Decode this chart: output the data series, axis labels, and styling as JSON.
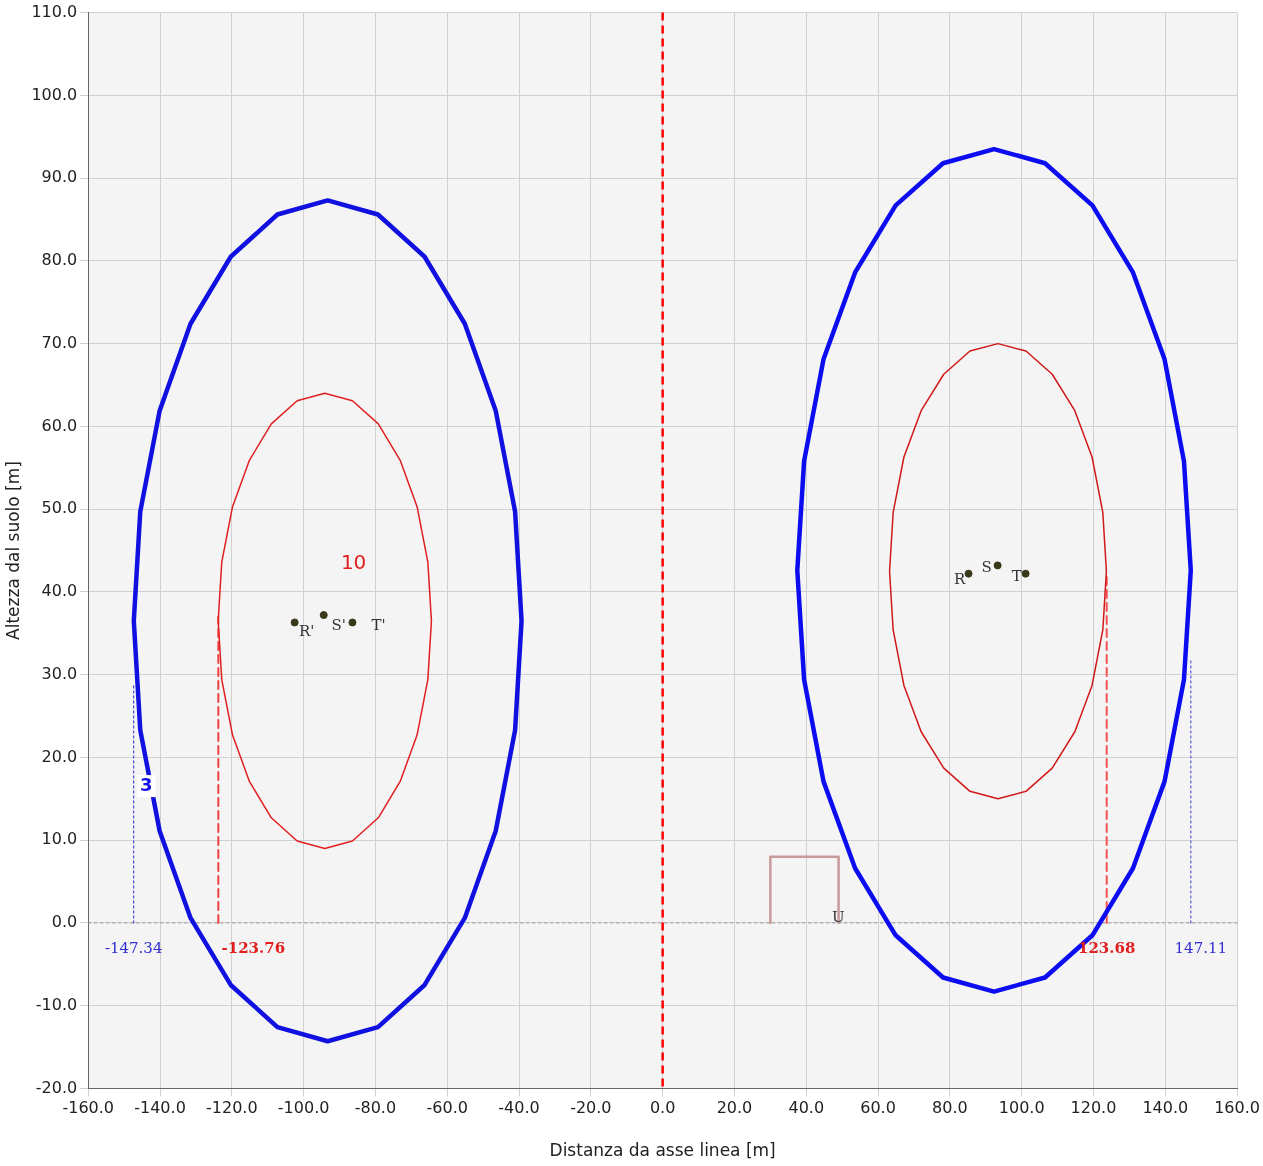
{
  "chart_data": {
    "type": "line",
    "xlabel": "Distanza da asse linea [m]",
    "ylabel": "Altezza dal suolo [m]",
    "xlim": [
      -160,
      160
    ],
    "ylim": [
      -20,
      110
    ],
    "xticks": [
      {
        "value": -160,
        "label": "-160.0"
      },
      {
        "value": -140,
        "label": "-140.0"
      },
      {
        "value": -120,
        "label": "-120.0"
      },
      {
        "value": -100,
        "label": "-100.0"
      },
      {
        "value": -80,
        "label": "-80.0"
      },
      {
        "value": -60,
        "label": "-60.0"
      },
      {
        "value": -40,
        "label": "-40.0"
      },
      {
        "value": -20,
        "label": "-20.0"
      },
      {
        "value": 0,
        "label": "0.0"
      },
      {
        "value": 20,
        "label": "20.0"
      },
      {
        "value": 40,
        "label": "40.0"
      },
      {
        "value": 60,
        "label": "60.0"
      },
      {
        "value": 80,
        "label": "80.0"
      },
      {
        "value": 100,
        "label": "100.0"
      },
      {
        "value": 120,
        "label": "120.0"
      },
      {
        "value": 140,
        "label": "140.0"
      },
      {
        "value": 160,
        "label": "160.0"
      }
    ],
    "yticks": [
      {
        "value": -20,
        "label": "-20.0"
      },
      {
        "value": -10,
        "label": "-10.0"
      },
      {
        "value": 0,
        "label": "0.0"
      },
      {
        "value": 10,
        "label": "10.0"
      },
      {
        "value": 20,
        "label": "20.0"
      },
      {
        "value": 30,
        "label": "30.0"
      },
      {
        "value": 40,
        "label": "40.0"
      },
      {
        "value": 50,
        "label": "50.0"
      },
      {
        "value": 60,
        "label": "60.0"
      },
      {
        "value": 70,
        "label": "70.0"
      },
      {
        "value": 80,
        "label": "80.0"
      },
      {
        "value": 90,
        "label": "90.0"
      },
      {
        "value": 100,
        "label": "100.0"
      },
      {
        "value": 110,
        "label": "110.0"
      }
    ],
    "grid": true,
    "legend": false,
    "series": [
      {
        "color": "#1010e0",
        "line_style": "solid",
        "x": [
          -147.3,
          -145.5,
          -140.1,
          -131.5,
          -120.3,
          -107.3,
          -93.3,
          -79.3,
          -66.3,
          -55.1,
          -46.5,
          -41.1,
          -39.3,
          null,
          -147.3,
          -145.5,
          -140.1,
          -131.5,
          -120.3,
          -107.3,
          -93.3,
          -79.3,
          -66.3,
          -55.1,
          -46.5,
          -41.1,
          -39.3
        ],
        "values": [
          36.5,
          49.7,
          61.9,
          72.4,
          80.5,
          85.6,
          87.3,
          85.6,
          80.5,
          72.4,
          61.9,
          49.7,
          36.5,
          null,
          36.5,
          23.3,
          11.1,
          0.6,
          -7.5,
          -12.6,
          -14.3,
          -12.6,
          -7.5,
          0.6,
          11.1,
          23.3,
          36.5
        ]
      },
      {
        "color": "#e02020",
        "line_style": "solid",
        "x": [
          -123.8,
          -122.8,
          -119.8,
          -115.1,
          -109.0,
          -101.8,
          -94.1,
          -86.4,
          -79.2,
          -73.1,
          -68.4,
          -65.4,
          -64.4,
          null,
          -123.8,
          -122.8,
          -119.8,
          -115.1,
          -109.0,
          -101.8,
          -94.1,
          -86.4,
          -79.2,
          -73.1,
          -68.4,
          -65.4,
          -64.4
        ],
        "values": [
          36.5,
          43.6,
          50.3,
          55.9,
          60.3,
          63.1,
          64.0,
          63.1,
          60.3,
          55.9,
          50.3,
          43.6,
          36.5,
          null,
          36.5,
          29.4,
          22.7,
          17.1,
          12.7,
          9.9,
          9.0,
          9.9,
          12.7,
          17.1,
          22.7,
          29.4,
          36.5
        ]
      },
      {
        "color": "#0c0cf0",
        "line_style": "solid",
        "x": [
          37.5,
          39.4,
          44.8,
          53.6,
          64.9,
          78.1,
          92.3,
          106.5,
          119.7,
          131.0,
          139.8,
          145.2,
          147.1,
          null,
          37.5,
          39.4,
          44.8,
          53.6,
          64.9,
          78.1,
          92.3,
          106.5,
          119.7,
          131.0,
          139.8,
          145.2,
          147.1
        ],
        "values": [
          42.6,
          55.8,
          68.1,
          78.6,
          86.7,
          91.8,
          93.5,
          91.8,
          86.7,
          78.6,
          68.1,
          55.8,
          42.6,
          null,
          42.6,
          29.4,
          17.1,
          6.6,
          -1.5,
          -6.6,
          -8.3,
          -6.6,
          -1.5,
          6.6,
          17.1,
          29.4,
          42.6
        ]
      },
      {
        "color": "#d01818",
        "line_style": "solid",
        "x": [
          63.2,
          64.2,
          67.2,
          72.0,
          78.3,
          85.6,
          93.4,
          101.2,
          108.5,
          114.8,
          119.6,
          122.6,
          123.6,
          null,
          63.2,
          64.2,
          67.2,
          72.0,
          78.3,
          85.6,
          93.4,
          101.2,
          108.5,
          114.8,
          119.6,
          122.6,
          123.6
        ],
        "values": [
          42.5,
          49.6,
          56.3,
          61.9,
          66.3,
          69.1,
          70.0,
          69.1,
          66.3,
          61.9,
          56.3,
          49.6,
          42.5,
          null,
          42.5,
          35.4,
          28.7,
          23.1,
          18.7,
          15.9,
          15.0,
          15.9,
          18.7,
          23.1,
          28.7,
          35.4,
          42.5
        ]
      },
      {
        "color": "#4848d8",
        "line_style": "dotted",
        "x": [
          -147.34,
          -147.34
        ],
        "values": [
          0,
          29
        ]
      },
      {
        "color": "#f04040",
        "line_style": "dashed",
        "x": [
          -123.76,
          -123.76
        ],
        "values": [
          0,
          37
        ]
      },
      {
        "color": "#f85050",
        "line_style": "dashed",
        "x": [
          123.68,
          123.68
        ],
        "values": [
          0,
          42
        ]
      },
      {
        "color": "#5c5cd0",
        "line_style": "dotted",
        "x": [
          147.11,
          147.11
        ],
        "values": [
          0,
          32
        ]
      },
      {
        "color": "#c89a9a",
        "line_style": "solid",
        "x": [
          30,
          30,
          49,
          49
        ],
        "values": [
          0,
          8,
          8,
          0
        ]
      },
      {
        "type": "scatter",
        "color": "#3a3a1a",
        "marker": "circle",
        "x": [
          -102.5,
          -94.4,
          -86.4
        ],
        "values": [
          36.3,
          37.2,
          36.3
        ]
      },
      {
        "type": "scatter",
        "color": "#3a3a1a",
        "marker": "circle",
        "x": [
          85.2,
          93.3,
          101.1
        ],
        "values": [
          42.2,
          43.2,
          42.2
        ]
      }
    ],
    "ref_lines": [
      {
        "axis": "x",
        "value": 0,
        "color": "#ff0000",
        "line_style": "dashed"
      },
      {
        "axis": "y",
        "value": 0,
        "color": "#999999",
        "line_style": "dashed"
      }
    ],
    "annotations": [
      {
        "text": "-147.34",
        "x": -147.34,
        "y": 0
      },
      {
        "text": "-123.76",
        "x": -123.76,
        "y": 0
      },
      {
        "text": "123.68",
        "x": 123.68,
        "y": 0
      },
      {
        "text": "147.11",
        "x": 147.11,
        "y": 0
      },
      "10",
      "3",
      {
        "text": "R'",
        "x": -102.5,
        "y": 36.3
      },
      {
        "text": "S'",
        "x": -94.4,
        "y": 37.2
      },
      {
        "text": "T'",
        "x": -86.4,
        "y": 36.3
      },
      {
        "text": "R",
        "x": 85.2,
        "y": 42.2
      },
      {
        "text": "S",
        "x": 93.3,
        "y": 43.2
      },
      {
        "text": "T",
        "x": 101.1,
        "y": 42.2
      },
      "U"
    ]
  }
}
